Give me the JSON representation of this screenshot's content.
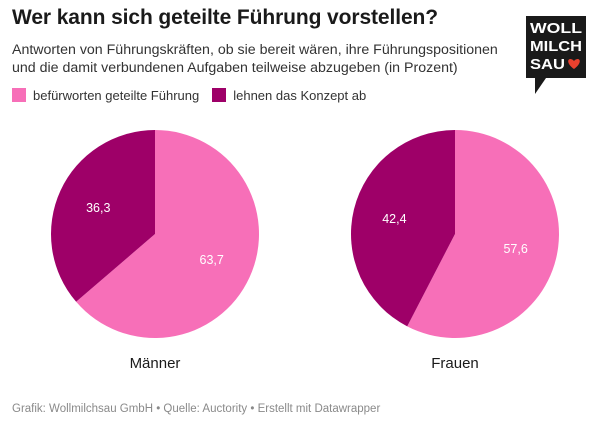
{
  "title": "Wer kann sich geteilte Führung vorstellen?",
  "subtitle_line1": "Antworten von Führungskräften, ob sie bereit wären, ihre Führungspositionen",
  "subtitle_line2": "und die damit verbundenen Aufgaben teilweise abzugeben (in Prozent)",
  "legend": [
    {
      "label": "befürworten geteilte Führung",
      "color": "#f76fb8"
    },
    {
      "label": "lehnen das Konzept ab",
      "color": "#9e0068"
    }
  ],
  "logo": {
    "line1": "WOLL",
    "line2": "MILCH",
    "line3": "SAU",
    "bg": "#1a1a1a",
    "heart_color": "#e8412e"
  },
  "footer": "Grafik: Wollmilchsau GmbH • Quelle: Auctority • Erstellt mit Datawrapper",
  "chart_data": [
    {
      "type": "pie",
      "title": "Männer",
      "slices": [
        {
          "label": "befürworten geteilte Führung",
          "value": 63.7,
          "display": "63,7",
          "color": "#f76fb8"
        },
        {
          "label": "lehnen das Konzept ab",
          "value": 36.3,
          "display": "36,3",
          "color": "#9e0068"
        }
      ]
    },
    {
      "type": "pie",
      "title": "Frauen",
      "slices": [
        {
          "label": "befürworten geteilte Führung",
          "value": 57.6,
          "display": "57,6",
          "color": "#f76fb8"
        },
        {
          "label": "lehnen das Konzept ab",
          "value": 42.4,
          "display": "42,4",
          "color": "#9e0068"
        }
      ]
    }
  ]
}
